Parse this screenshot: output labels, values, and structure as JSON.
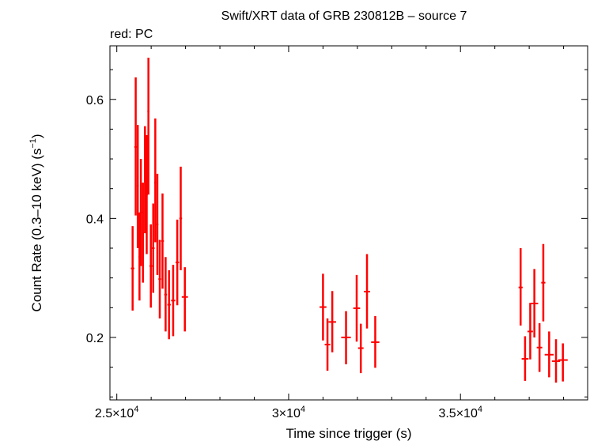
{
  "chart_data": {
    "type": "scatter",
    "title": "Swift/XRT data of GRB 230812B – source 7",
    "subtitle": "red: PC",
    "xlabel": "Time since trigger (s)",
    "ylabel": "Count Rate (0.3–10 keV) (s",
    "ylabel_sup": "−1",
    "ylabel_tail": ")",
    "xlim": [
      24800,
      38700
    ],
    "ylim": [
      0.095,
      0.69
    ],
    "x_ticks": [
      {
        "value": 25000,
        "mant": "2.5×10",
        "exp": "4"
      },
      {
        "value": 30000,
        "mant": "3×10",
        "exp": "4"
      },
      {
        "value": 35000,
        "mant": "3.5×10",
        "exp": "4"
      }
    ],
    "y_ticks": [
      {
        "value": 0.2,
        "label": "0.2"
      },
      {
        "value": 0.4,
        "label": "0.4"
      },
      {
        "value": 0.6,
        "label": "0.6"
      }
    ],
    "grid": false,
    "series": [
      {
        "color": "#ff0000",
        "points": [
          {
            "x": 25460,
            "xerr": 50,
            "y": 0.316,
            "ylo": 0.245,
            "yhi": 0.387
          },
          {
            "x": 25550,
            "xerr": 40,
            "y": 0.52,
            "ylo": 0.405,
            "yhi": 0.637
          },
          {
            "x": 25610,
            "xerr": 30,
            "y": 0.455,
            "ylo": 0.35,
            "yhi": 0.557
          },
          {
            "x": 25660,
            "xerr": 30,
            "y": 0.335,
            "ylo": 0.262,
            "yhi": 0.41
          },
          {
            "x": 25700,
            "xerr": 30,
            "y": 0.41,
            "ylo": 0.32,
            "yhi": 0.5
          },
          {
            "x": 25760,
            "xerr": 30,
            "y": 0.376,
            "ylo": 0.292,
            "yhi": 0.46
          },
          {
            "x": 25820,
            "xerr": 30,
            "y": 0.465,
            "ylo": 0.375,
            "yhi": 0.555
          },
          {
            "x": 25870,
            "xerr": 30,
            "y": 0.44,
            "ylo": 0.34,
            "yhi": 0.54
          },
          {
            "x": 25920,
            "xerr": 30,
            "y": 0.58,
            "ylo": 0.44,
            "yhi": 0.67
          },
          {
            "x": 25990,
            "xerr": 40,
            "y": 0.32,
            "ylo": 0.25,
            "yhi": 0.39
          },
          {
            "x": 26060,
            "xerr": 40,
            "y": 0.35,
            "ylo": 0.275,
            "yhi": 0.425
          },
          {
            "x": 26120,
            "xerr": 30,
            "y": 0.46,
            "ylo": 0.36,
            "yhi": 0.568
          },
          {
            "x": 26180,
            "xerr": 30,
            "y": 0.39,
            "ylo": 0.305,
            "yhi": 0.475
          },
          {
            "x": 26250,
            "xerr": 40,
            "y": 0.298,
            "ylo": 0.232,
            "yhi": 0.364
          },
          {
            "x": 26330,
            "xerr": 40,
            "y": 0.362,
            "ylo": 0.282,
            "yhi": 0.442
          },
          {
            "x": 26420,
            "xerr": 40,
            "y": 0.272,
            "ylo": 0.21,
            "yhi": 0.335
          },
          {
            "x": 26520,
            "xerr": 50,
            "y": 0.255,
            "ylo": 0.197,
            "yhi": 0.313
          },
          {
            "x": 26640,
            "xerr": 60,
            "y": 0.262,
            "ylo": 0.202,
            "yhi": 0.322
          },
          {
            "x": 26760,
            "xerr": 50,
            "y": 0.326,
            "ylo": 0.254,
            "yhi": 0.398
          },
          {
            "x": 26860,
            "xerr": 40,
            "y": 0.4,
            "ylo": 0.313,
            "yhi": 0.487
          },
          {
            "x": 26980,
            "xerr": 90,
            "y": 0.268,
            "ylo": 0.21,
            "yhi": 0.318
          },
          {
            "x": 31000,
            "xerr": 100,
            "y": 0.251,
            "ylo": 0.195,
            "yhi": 0.307
          },
          {
            "x": 31130,
            "xerr": 80,
            "y": 0.188,
            "ylo": 0.144,
            "yhi": 0.232
          },
          {
            "x": 31270,
            "xerr": 110,
            "y": 0.226,
            "ylo": 0.175,
            "yhi": 0.278
          },
          {
            "x": 31670,
            "xerr": 140,
            "y": 0.2,
            "ylo": 0.155,
            "yhi": 0.244
          },
          {
            "x": 31980,
            "xerr": 100,
            "y": 0.249,
            "ylo": 0.193,
            "yhi": 0.305
          },
          {
            "x": 32100,
            "xerr": 80,
            "y": 0.182,
            "ylo": 0.14,
            "yhi": 0.223
          },
          {
            "x": 32280,
            "xerr": 90,
            "y": 0.277,
            "ylo": 0.215,
            "yhi": 0.34
          },
          {
            "x": 32520,
            "xerr": 120,
            "y": 0.192,
            "ylo": 0.149,
            "yhi": 0.236
          },
          {
            "x": 36750,
            "xerr": 60,
            "y": 0.284,
            "ylo": 0.22,
            "yhi": 0.35
          },
          {
            "x": 36880,
            "xerr": 100,
            "y": 0.164,
            "ylo": 0.127,
            "yhi": 0.202
          },
          {
            "x": 37030,
            "xerr": 80,
            "y": 0.21,
            "ylo": 0.163,
            "yhi": 0.258
          },
          {
            "x": 37150,
            "xerr": 110,
            "y": 0.257,
            "ylo": 0.2,
            "yhi": 0.315
          },
          {
            "x": 37300,
            "xerr": 80,
            "y": 0.183,
            "ylo": 0.142,
            "yhi": 0.224
          },
          {
            "x": 37410,
            "xerr": 60,
            "y": 0.292,
            "ylo": 0.227,
            "yhi": 0.357
          },
          {
            "x": 37580,
            "xerr": 130,
            "y": 0.171,
            "ylo": 0.133,
            "yhi": 0.21
          },
          {
            "x": 37780,
            "xerr": 120,
            "y": 0.16,
            "ylo": 0.124,
            "yhi": 0.197
          },
          {
            "x": 37980,
            "xerr": 140,
            "y": 0.162,
            "ylo": 0.126,
            "yhi": 0.19
          }
        ]
      }
    ]
  }
}
